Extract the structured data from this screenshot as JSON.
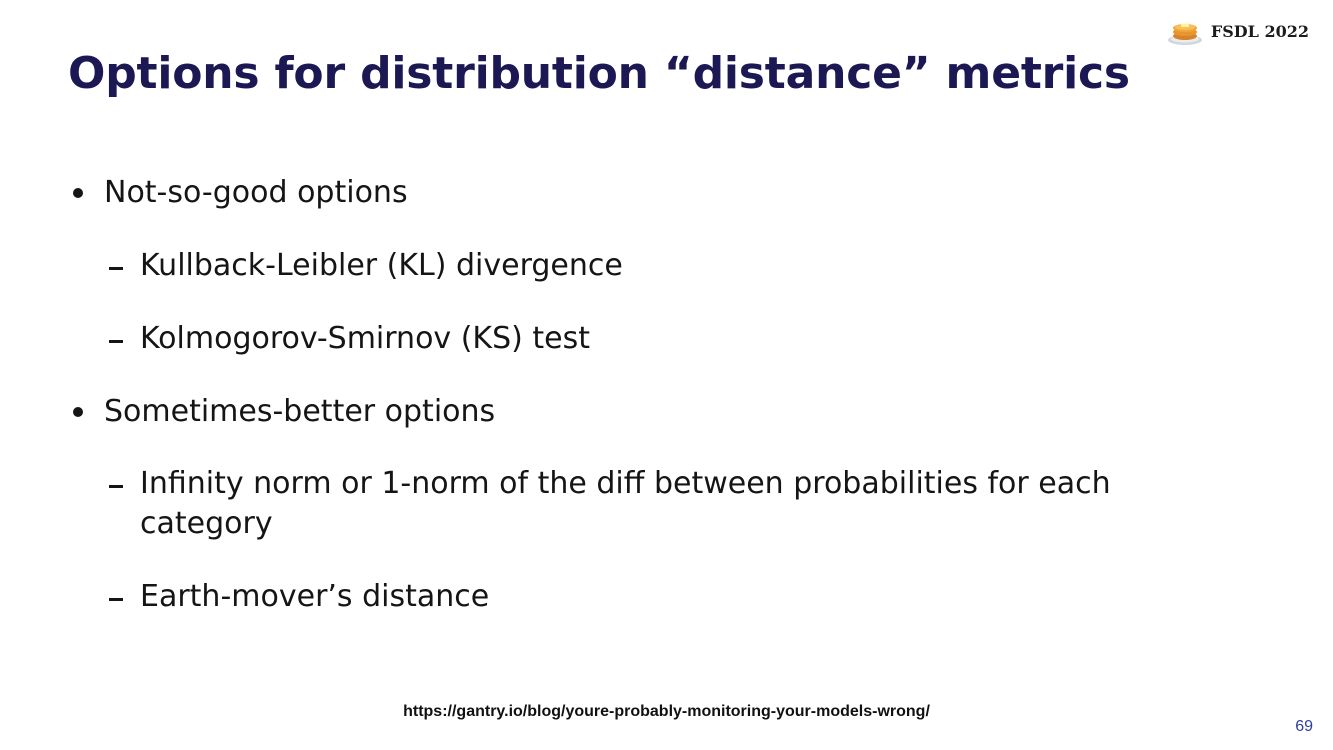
{
  "slide": {
    "title": "Options for distribution “distance” metrics",
    "brand": {
      "logo_icon": "pancakes-icon",
      "text": "FSDL 2022"
    },
    "bullets": [
      {
        "text": "Not-so-good options",
        "subitems": [
          "Kullback-Leibler (KL) divergence",
          "Kolmogorov-Smirnov (KS) test"
        ]
      },
      {
        "text": "Sometimes-better options",
        "subitems": [
          "Infinity norm or 1-norm of the diff between probabilities for each category",
          "Earth-mover’s distance"
        ]
      }
    ],
    "source_link": "https://gantry.io/blog/youre-probably-monitoring-your-models-wrong/",
    "page_number": "69"
  }
}
